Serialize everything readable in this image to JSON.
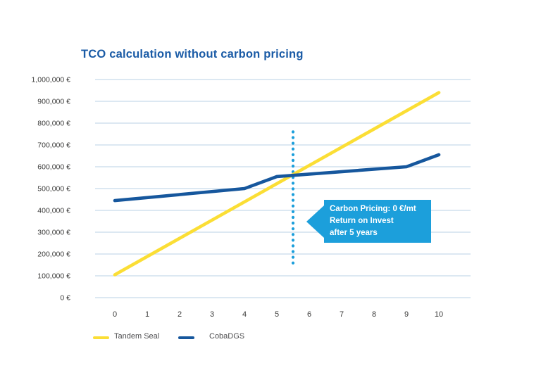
{
  "colors": {
    "title_text": "#1A5BA6",
    "axis_text": "#3C3C3B",
    "legend_text": "#4D4D4F",
    "grid_line": "#C7D9EB",
    "accent_azure": "#1C9FDB",
    "tandem_seal_yellow": "#FBDE35",
    "cobadgs_blue": "#16579D",
    "callout_text": "#FFFFFF",
    "background": "#FFFFFF"
  },
  "chart_data": {
    "type": "line",
    "title": "TCO calculation without carbon pricing",
    "xlabel": "",
    "ylabel": "",
    "xlim": [
      0,
      10
    ],
    "ylim": [
      0,
      1000000
    ],
    "grid": "horizontal",
    "legend_position": "bottom-left",
    "x_ticks": [
      {
        "label": "0",
        "value": 0
      },
      {
        "label": "1",
        "value": 1
      },
      {
        "label": "2",
        "value": 2
      },
      {
        "label": "3",
        "value": 3
      },
      {
        "label": "4",
        "value": 4
      },
      {
        "label": "5",
        "value": 5
      },
      {
        "label": "6",
        "value": 6
      },
      {
        "label": "7",
        "value": 7
      },
      {
        "label": "8",
        "value": 8
      },
      {
        "label": "9",
        "value": 9
      },
      {
        "label": "10",
        "value": 10
      }
    ],
    "y_ticks": [
      {
        "label": "1,000,000 €",
        "value": 1000000
      },
      {
        "label": "900,000 €",
        "value": 900000
      },
      {
        "label": "800,000 €",
        "value": 800000
      },
      {
        "label": "700,000 €",
        "value": 700000
      },
      {
        "label": "600,000 €",
        "value": 600000
      },
      {
        "label": "500,000 €",
        "value": 500000
      },
      {
        "label": "400,000 €",
        "value": 400000
      },
      {
        "label": "300,000 €",
        "value": 300000
      },
      {
        "label": "200,000 €",
        "value": 200000
      },
      {
        "label": "100,000 €",
        "value": 100000
      },
      {
        "label": "0 €",
        "value": 0
      }
    ],
    "series": [
      {
        "name": "Tandem Seal",
        "color_key": "tandem_seal_yellow",
        "points": [
          [
            0,
            105000
          ],
          [
            10,
            940000
          ]
        ]
      },
      {
        "name": "CobaDGS",
        "color_key": "cobadgs_blue",
        "points": [
          [
            0,
            445000
          ],
          [
            4,
            500000
          ],
          [
            5,
            555000
          ],
          [
            9,
            600000
          ],
          [
            10,
            655000
          ]
        ]
      }
    ],
    "annotation": {
      "break_even_x": 5.5,
      "break_even_y_span": [
        140000,
        760000
      ],
      "callout_lines": [
        "Carbon Pricing: 0 €/mt",
        "Return on Invest",
        "after 5 years"
      ]
    }
  }
}
